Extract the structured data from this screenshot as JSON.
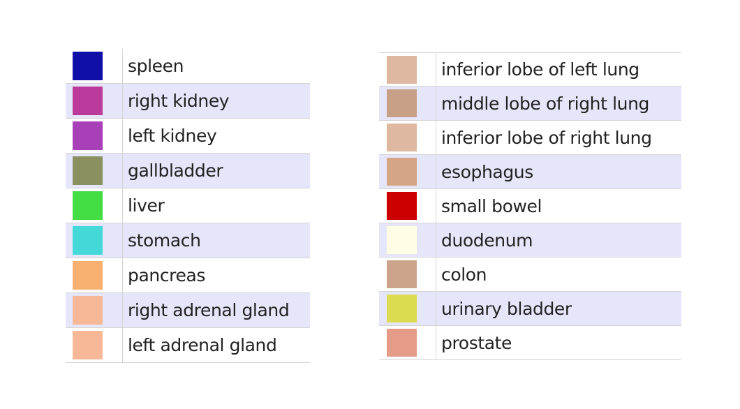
{
  "legend_left": [
    {
      "label": "spleen",
      "color": "#1010a8"
    },
    {
      "label": "right kidney",
      "color": "#bc3a9c"
    },
    {
      "label": "left kidney",
      "color": "#a840b8"
    },
    {
      "label": "gallbladder",
      "color": "#8a9060"
    },
    {
      "label": "liver",
      "color": "#44dd44"
    },
    {
      "label": "stomach",
      "color": "#44d8d8"
    },
    {
      "label": "pancreas",
      "color": "#f8b070"
    },
    {
      "label": "right adrenal gland",
      "color": "#f6b896"
    },
    {
      "label": "left adrenal gland",
      "color": "#f6b896"
    }
  ],
  "legend_right": [
    {
      "label": "inferior lobe of left lung",
      "color": "#deb8a0"
    },
    {
      "label": "middle lobe of right lung",
      "color": "#c8a088"
    },
    {
      "label": "inferior lobe of right lung",
      "color": "#deb8a0"
    },
    {
      "label": "esophagus",
      "color": "#d4a686"
    },
    {
      "label": "small bowel",
      "color": "#cc0000"
    },
    {
      "label": "duodenum",
      "color": "#fffde6"
    },
    {
      "label": "colon",
      "color": "#cca48c"
    },
    {
      "label": "urinary bladder",
      "color": "#dcdc50"
    },
    {
      "label": "prostate",
      "color": "#e49c88"
    }
  ]
}
